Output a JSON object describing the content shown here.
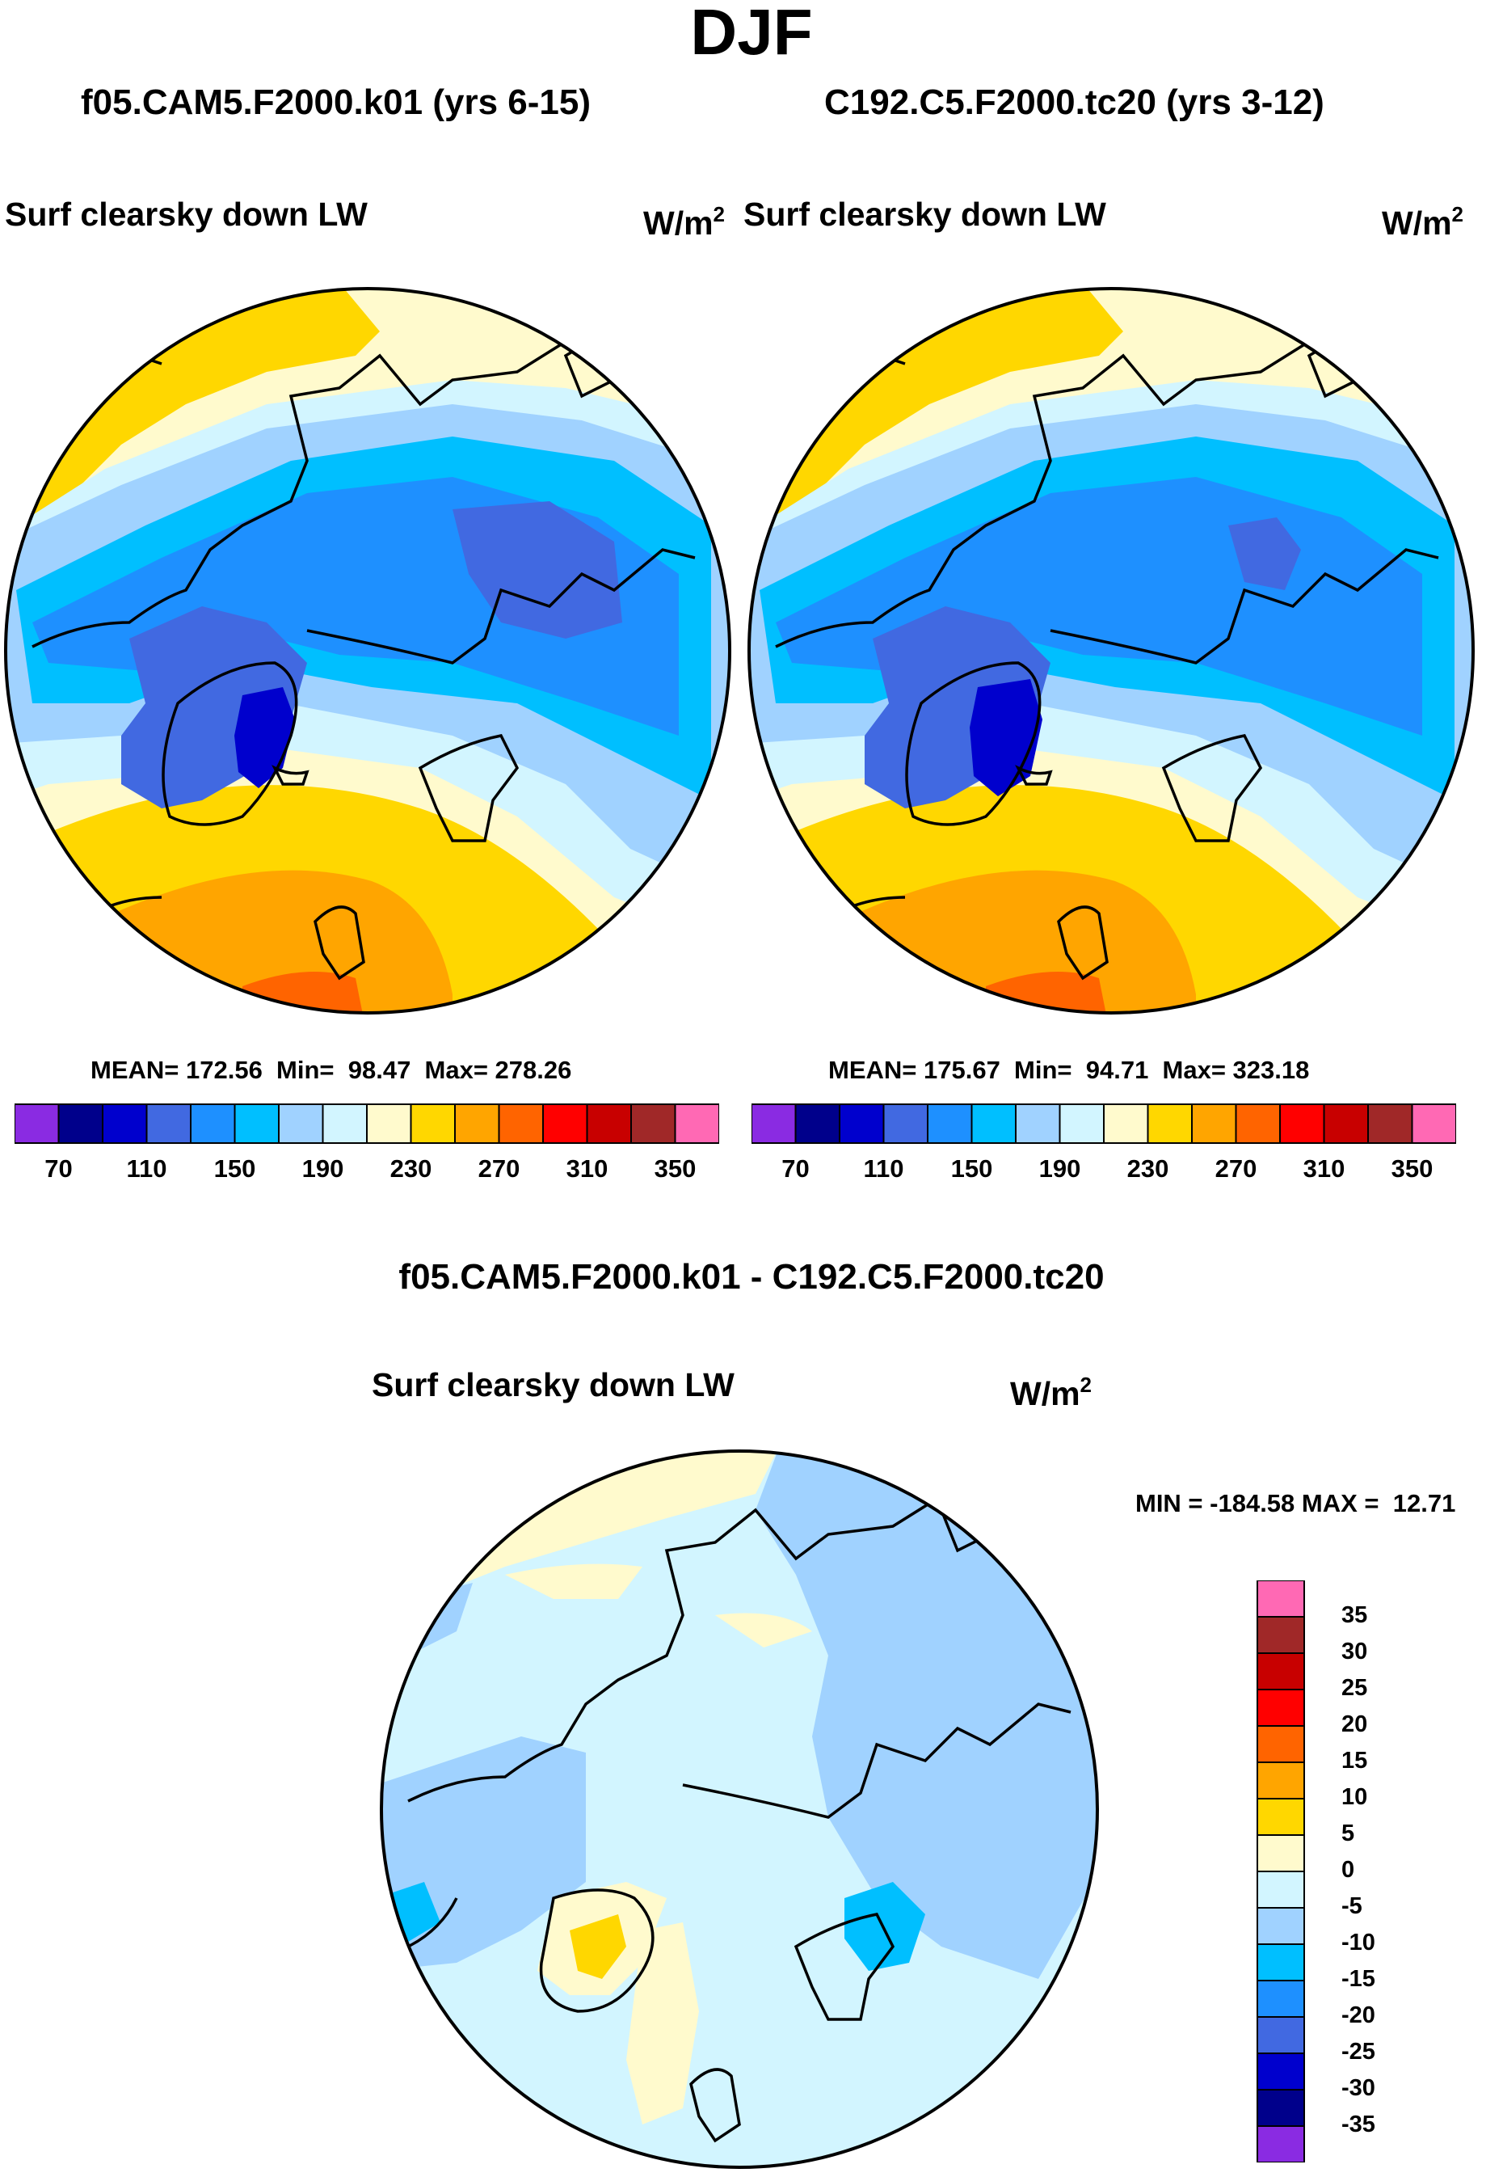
{
  "figure": {
    "title": "DJF",
    "difference_title": "f05.CAM5.F2000.k01 - C192.C5.F2000.tc20"
  },
  "panels": [
    {
      "case": "f05.CAM5.F2000.k01 (yrs 6-15)",
      "variable": "Surf clearsky down LW",
      "units": "W/m",
      "units_exp": "2",
      "mean": "172.56",
      "min": "98.47",
      "max": "278.26",
      "stats_text": "MEAN= 172.56  Min=  98.47  Max= 278.26"
    },
    {
      "case": "C192.C5.F2000.tc20 (yrs 3-12)",
      "variable": "Surf clearsky down LW",
      "units": "W/m",
      "units_exp": "2",
      "mean": "175.67",
      "min": "94.71",
      "max": "323.18",
      "stats_text": "MEAN= 175.67  Min=  94.71  Max= 323.18"
    }
  ],
  "difference": {
    "variable": "Surf clearsky down LW",
    "units": "W/m",
    "units_exp": "2",
    "stats_text": "MIN = -184.58 MAX =  12.71",
    "min": "-184.58",
    "max": "12.71"
  },
  "colorbar_main": {
    "colors": [
      "#8a2be2",
      "#00008b",
      "#0000cd",
      "#4169e1",
      "#1e90ff",
      "#00bfff",
      "#a0d2ff",
      "#d2f5ff",
      "#fffacd",
      "#ffd700",
      "#ffa500",
      "#ff6400",
      "#ff0000",
      "#c80000",
      "#a02828",
      "#ff69b4"
    ],
    "labels": [
      "70",
      "110",
      "150",
      "190",
      "230",
      "270",
      "310",
      "350"
    ]
  },
  "colorbar_diff": {
    "colors_top_to_bottom": [
      "#ff69b4",
      "#a02828",
      "#c80000",
      "#ff0000",
      "#ff6400",
      "#ffa500",
      "#ffd700",
      "#fffacd",
      "#d2f5ff",
      "#a0d2ff",
      "#00bfff",
      "#1e90ff",
      "#4169e1",
      "#0000cd",
      "#00008b",
      "#8a2be2"
    ],
    "labels": [
      "35",
      "30",
      "25",
      "20",
      "15",
      "10",
      "5",
      "0",
      "-5",
      "-10",
      "-15",
      "-20",
      "-25",
      "-30",
      "-35"
    ]
  },
  "map_colors": {
    "c110": "#4169e1",
    "c130": "#1e90ff",
    "c150": "#00bfff",
    "c170": "#a0d2ff",
    "c190": "#d2f5ff",
    "c210": "#fffacd",
    "c230": "#ffd700",
    "c250": "#ffa500",
    "c270": "#ff6400",
    "c90": "#0000cd"
  },
  "chart_data": {
    "type": "heatmap",
    "title": "DJF",
    "projection": "north polar stereographic",
    "variable": "Surf clearsky down LW",
    "units": "W/m^2",
    "panels": [
      {
        "name": "f05.CAM5.F2000.k01 (yrs 6-15)",
        "mean": 172.56,
        "min": 98.47,
        "max": 278.26
      },
      {
        "name": "C192.C5.F2000.tc20 (yrs 3-12)",
        "mean": 175.67,
        "min": 94.71,
        "max": 323.18
      },
      {
        "name": "f05.CAM5.F2000.k01 - C192.C5.F2000.tc20",
        "min": -184.58,
        "max": 12.71
      }
    ],
    "levels_main": [
      70,
      90,
      110,
      130,
      150,
      170,
      190,
      210,
      230,
      250,
      270,
      290,
      310,
      330,
      350
    ],
    "levels_diff": [
      -35,
      -30,
      -25,
      -20,
      -15,
      -10,
      -5,
      0,
      5,
      10,
      15,
      20,
      25,
      30,
      35
    ]
  }
}
